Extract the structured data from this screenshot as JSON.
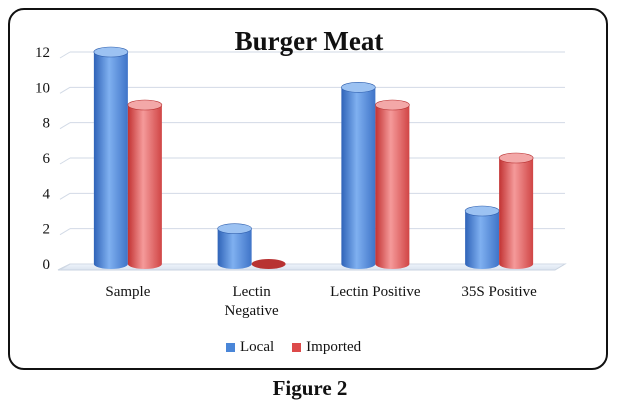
{
  "chart_data": {
    "type": "bar",
    "title": "Burger Meat",
    "categories": [
      "Sample",
      "Lectin\nNegative",
      "Lectin Positive",
      "35S Positive"
    ],
    "series": [
      {
        "name": "Local",
        "values": [
          12,
          2,
          10,
          3
        ],
        "color": "#4a86d8"
      },
      {
        "name": "Imported",
        "values": [
          9,
          0,
          9,
          6
        ],
        "color": "#dd4a4a"
      }
    ],
    "ylim": [
      0,
      12
    ],
    "yticks": [
      "0",
      "2",
      "4",
      "6",
      "8",
      "10",
      "12"
    ],
    "grid": true,
    "legend_position": "bottom"
  },
  "caption": "Figure 2"
}
